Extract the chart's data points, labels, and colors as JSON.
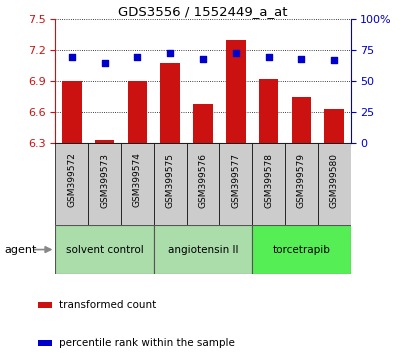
{
  "title": "GDS3556 / 1552449_a_at",
  "samples": [
    "GSM399572",
    "GSM399573",
    "GSM399574",
    "GSM399575",
    "GSM399576",
    "GSM399577",
    "GSM399578",
    "GSM399579",
    "GSM399580"
  ],
  "bar_values": [
    6.9,
    6.33,
    6.9,
    7.08,
    6.68,
    7.3,
    6.92,
    6.75,
    6.63
  ],
  "percentile_values": [
    70,
    65,
    70,
    73,
    68,
    73,
    70,
    68,
    67
  ],
  "ylim": [
    6.3,
    7.5
  ],
  "yticks_left": [
    6.3,
    6.6,
    6.9,
    7.2,
    7.5
  ],
  "yticks_right": [
    0,
    25,
    50,
    75,
    100
  ],
  "bar_color": "#cc1111",
  "dot_color": "#0000cc",
  "bar_width": 0.6,
  "groups": [
    {
      "label": "solvent control",
      "start": 0,
      "end": 3,
      "color": "#aaddaa"
    },
    {
      "label": "angiotensin II",
      "start": 3,
      "end": 6,
      "color": "#aaddaa"
    },
    {
      "label": "torcetrapib",
      "start": 6,
      "end": 9,
      "color": "#55ee55"
    }
  ],
  "agent_label": "agent",
  "legend_bar_label": "transformed count",
  "legend_dot_label": "percentile rank within the sample",
  "background_color": "#ffffff",
  "cell_bg": "#cccccc"
}
